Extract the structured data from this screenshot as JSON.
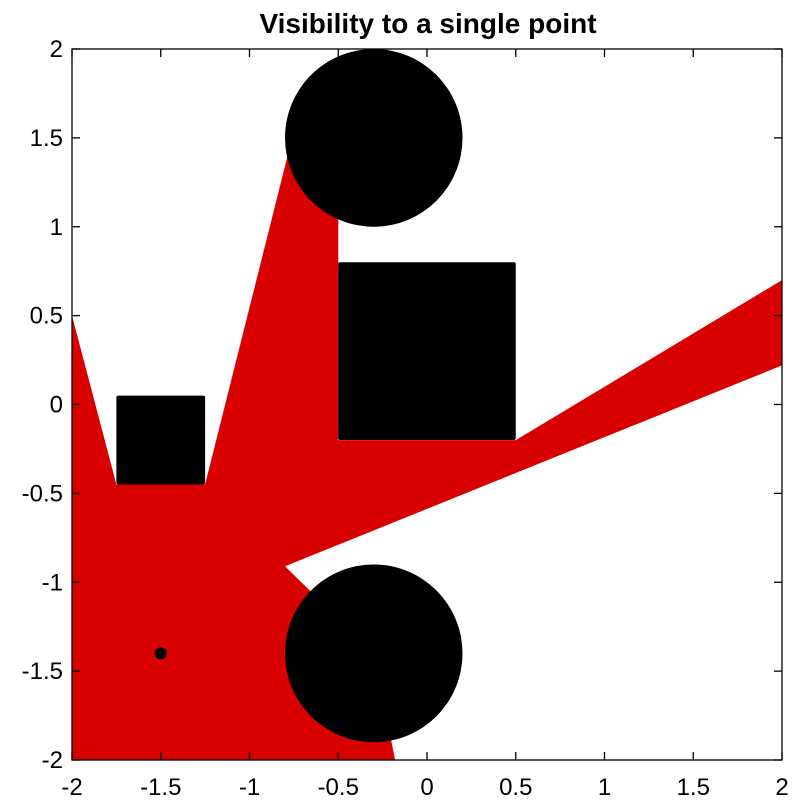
{
  "chart_data": {
    "type": "scatter",
    "title": "Visibility to a single point",
    "xlabel": "",
    "ylabel": "",
    "xlim": [
      -2,
      2
    ],
    "ylim": [
      -2,
      2
    ],
    "grid": false,
    "xticks": [
      -2,
      -1.5,
      -1,
      -0.5,
      0,
      0.5,
      1,
      1.5,
      2
    ],
    "yticks": [
      -2,
      -1.5,
      -1,
      -0.5,
      0,
      0.5,
      1,
      1.5,
      2
    ],
    "xtick_labels": [
      "-2",
      "-1.5",
      "-1",
      "-0.5",
      "0",
      "0.5",
      "1",
      "1.5",
      "2"
    ],
    "ytick_labels": [
      "-2",
      "-1.5",
      "-1",
      "-0.5",
      "0",
      "0.5",
      "1",
      "1.5",
      "2"
    ],
    "viewpoint": {
      "x": -1.5,
      "y": -1.4
    },
    "obstacles": [
      {
        "kind": "circle",
        "name": "upper-circle",
        "cx": -0.3,
        "cy": 1.5,
        "r": 0.5
      },
      {
        "kind": "circle",
        "name": "lower-circle",
        "cx": -0.3,
        "cy": -1.4,
        "r": 0.5
      },
      {
        "kind": "rect",
        "name": "small-square",
        "x0": -1.75,
        "y0": -0.45,
        "x1": -1.25,
        "y1": 0.05
      },
      {
        "kind": "rect",
        "name": "large-square",
        "x0": -0.5,
        "y0": -0.2,
        "x1": 0.5,
        "y1": 0.8
      }
    ],
    "visible_region": [
      [
        -2,
        -2
      ],
      [
        -2,
        0.5
      ],
      [
        -1.75,
        -0.45
      ],
      [
        -1.25,
        -0.45
      ],
      [
        -0.78,
        1.42
      ],
      [
        -0.5,
        1.1
      ],
      [
        -0.5,
        -0.2
      ],
      [
        0.5,
        -0.2
      ],
      [
        2,
        0.7
      ],
      [
        2,
        0.22
      ],
      [
        -0.8,
        -0.91
      ],
      [
        -0.3,
        -1.4
      ],
      [
        -0.18,
        -2
      ]
    ],
    "colors": {
      "visible": "#d90000",
      "obstacle": "#000000",
      "axes": "#000000",
      "background": "#ffffff"
    }
  }
}
